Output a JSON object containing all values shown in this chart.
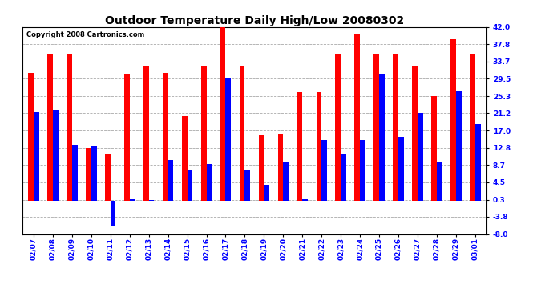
{
  "title": "Outdoor Temperature Daily High/Low 20080302",
  "copyright": "Copyright 2008 Cartronics.com",
  "dates": [
    "02/07",
    "02/08",
    "02/09",
    "02/10",
    "02/11",
    "02/12",
    "02/13",
    "02/14",
    "02/15",
    "02/16",
    "02/17",
    "02/18",
    "02/19",
    "02/20",
    "02/21",
    "02/22",
    "02/23",
    "02/24",
    "02/25",
    "02/26",
    "02/27",
    "02/28",
    "02/29",
    "03/01"
  ],
  "highs": [
    31.0,
    35.5,
    35.5,
    12.8,
    11.5,
    30.5,
    32.5,
    31.0,
    20.5,
    32.5,
    42.0,
    32.5,
    15.8,
    16.0,
    26.3,
    26.3,
    35.5,
    40.5,
    35.5,
    35.5,
    32.5,
    25.3,
    39.0,
    35.3
  ],
  "lows": [
    21.5,
    22.0,
    13.5,
    13.2,
    -6.0,
    0.5,
    0.3,
    9.8,
    7.5,
    9.0,
    29.5,
    7.5,
    3.8,
    9.2,
    0.5,
    14.8,
    11.2,
    14.8,
    30.5,
    15.5,
    21.3,
    9.3,
    26.5,
    18.5
  ],
  "high_color": "#ff0000",
  "low_color": "#0000ff",
  "bg_color": "#ffffff",
  "grid_color": "#aaaaaa",
  "yticks": [
    42.0,
    37.8,
    33.7,
    29.5,
    25.3,
    21.2,
    17.0,
    12.8,
    8.7,
    4.5,
    0.3,
    -3.8,
    -8.0
  ],
  "ymin": -8.0,
  "ymax": 42.0,
  "bar_width": 0.28,
  "title_fontsize": 10,
  "tick_fontsize": 6.5,
  "copyright_fontsize": 6
}
